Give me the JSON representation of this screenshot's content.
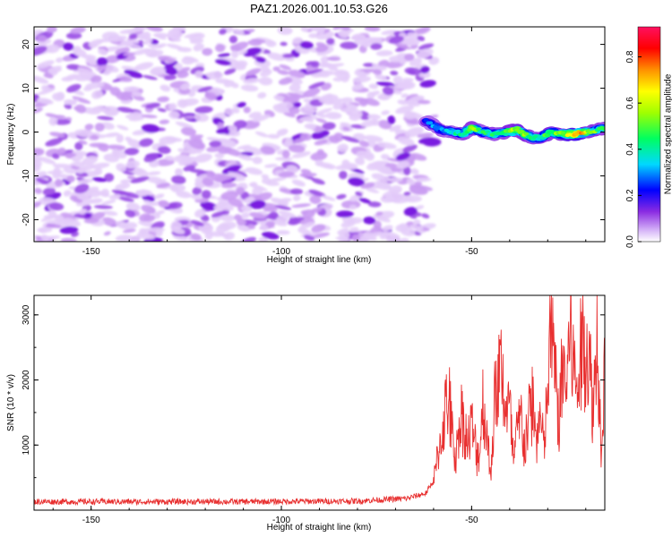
{
  "title": "PAZ1.2026.001.10.53.G26",
  "chart_data": [
    {
      "type": "heatmap",
      "xlabel": "Height of straight line (km)",
      "ylabel": "Frequency (Hz)",
      "xlim": [
        -165,
        -15
      ],
      "ylim": [
        -25,
        24
      ],
      "xticks": [
        -150,
        -100,
        -50
      ],
      "yticks": [
        -20,
        -10,
        0,
        10,
        20
      ],
      "xtick_labels": [
        "-150",
        "-100",
        "-50"
      ],
      "ytick_labels": [
        "-20",
        "-10",
        "0",
        "10",
        "20"
      ],
      "colorbar": {
        "label": "Normalized spectral amplitude",
        "range": [
          0,
          0.93
        ],
        "ticks": [
          "0.0",
          "0.2",
          "0.4",
          "0.6",
          "0.8"
        ],
        "tick_values": [
          0,
          0.2,
          0.4,
          0.6,
          0.8
        ]
      },
      "noise_region_km": [
        -165,
        -61
      ],
      "signal_track": {
        "x": [
          -62,
          -58,
          -55,
          -52,
          -50,
          -47,
          -44,
          -41,
          -38,
          -35,
          -32,
          -29,
          -26,
          -23,
          -20,
          -17,
          -15
        ],
        "y": [
          2.5,
          0.5,
          0,
          -0.5,
          1,
          0,
          -0.5,
          0,
          0.5,
          -1,
          -1.5,
          0,
          -0.5,
          -0.5,
          0,
          0.5,
          1
        ],
        "amplitude": [
          0.3,
          0.35,
          0.4,
          0.45,
          0.6,
          0.45,
          0.45,
          0.5,
          0.65,
          0.5,
          0.45,
          0.55,
          0.55,
          0.85,
          0.65,
          0.5,
          0.45
        ]
      }
    },
    {
      "type": "line",
      "xlabel": "Height of straight line (km)",
      "ylabel": "SNR (10 * v/v)",
      "xlim": [
        -165,
        -15
      ],
      "ylim": [
        0,
        3300
      ],
      "xticks": [
        -150,
        -100,
        -50
      ],
      "yticks": [
        1000,
        2000,
        3000
      ],
      "xtick_labels": [
        "-150",
        "-100",
        "-50"
      ],
      "ytick_labels": [
        "1000",
        "2000",
        "3000"
      ],
      "series": [
        {
          "name": "SNR",
          "color": "#e83030",
          "x": [
            -165,
            -140,
            -110,
            -80,
            -67,
            -62,
            -60,
            -57,
            -56,
            -55,
            -54,
            -53,
            -52,
            -51,
            -50,
            -49,
            -48,
            -47,
            -46,
            -45,
            -44,
            -43,
            -42,
            -41,
            -40,
            -39,
            -38,
            -37,
            -36,
            -35,
            -34,
            -33,
            -32,
            -31,
            -30,
            -29,
            -28,
            -27,
            -26,
            -25,
            -24,
            -23,
            -22,
            -21,
            -20,
            -19,
            -18,
            -17,
            -16,
            -15
          ],
          "y": [
            130,
            130,
            130,
            140,
            180,
            260,
            450,
            1600,
            1880,
            1150,
            900,
            1600,
            1480,
            1050,
            1450,
            1000,
            900,
            1820,
            1250,
            600,
            1780,
            2180,
            2430,
            1550,
            1700,
            820,
            1300,
            1500,
            1050,
            1480,
            1850,
            1150,
            1550,
            1000,
            1950,
            3280,
            2100,
            1480,
            2450,
            2050,
            3180,
            2150,
            2100,
            2700,
            2850,
            2400,
            1700,
            3050,
            1100,
            2400
          ]
        }
      ]
    }
  ]
}
